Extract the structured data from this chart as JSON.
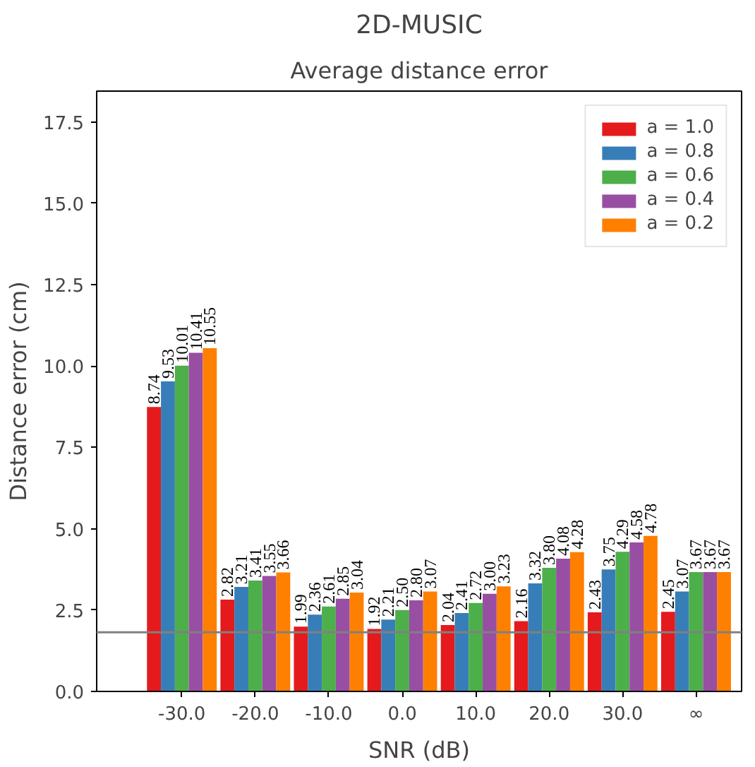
{
  "chart_data": {
    "type": "bar",
    "title": "2D-MUSIC",
    "subtitle": "Average distance error",
    "xlabel": "SNR (dB)",
    "ylabel": "Distance error (cm)",
    "categories": [
      "-30.0",
      "-20.0",
      "-10.0",
      "0.0",
      "10.0",
      "20.0",
      "30.0",
      "∞"
    ],
    "series": [
      {
        "name": "a = 1.0",
        "color": "#e41a1c",
        "values": [
          8.74,
          2.82,
          1.99,
          1.92,
          2.04,
          2.16,
          2.43,
          2.45
        ],
        "value_labels": [
          "8.74",
          "2.82",
          "1.99",
          "1.92",
          "2.04",
          "2.16",
          "2.43",
          "2.45"
        ]
      },
      {
        "name": "a = 0.8",
        "color": "#377eb8",
        "values": [
          9.53,
          3.21,
          2.36,
          2.21,
          2.41,
          3.32,
          3.75,
          3.07
        ],
        "value_labels": [
          "9.53",
          "3.21",
          "2.36",
          "2.21",
          "2.41",
          "3.32",
          "3.75",
          "3.07"
        ]
      },
      {
        "name": "a = 0.6",
        "color": "#4daf4a",
        "values": [
          10.01,
          3.41,
          2.61,
          2.5,
          2.72,
          3.8,
          4.29,
          3.67
        ],
        "value_labels": [
          "10.01",
          "3.41",
          "2.61",
          "2.50",
          "2.72",
          "3.80",
          "4.29",
          "3.67"
        ]
      },
      {
        "name": "a = 0.4",
        "color": "#984ea3",
        "values": [
          10.41,
          3.55,
          2.85,
          2.8,
          3.0,
          4.08,
          4.58,
          3.67
        ],
        "value_labels": [
          "10.41",
          "3.55",
          "2.85",
          "2.80",
          "3.00",
          "4.08",
          "4.58",
          "3.67"
        ]
      },
      {
        "name": "a = 0.2",
        "color": "#ff7f00",
        "values": [
          10.55,
          3.66,
          3.04,
          3.07,
          3.23,
          4.28,
          4.78,
          3.67
        ],
        "value_labels": [
          "10.55",
          "3.66",
          "3.04",
          "3.07",
          "3.23",
          "4.28",
          "4.78",
          "3.67"
        ]
      }
    ],
    "ylim": [
      0,
      18.45
    ],
    "yticks": [
      {
        "value": 0,
        "label": "0.0"
      },
      2.5,
      {
        "value": 5,
        "label": "5.0"
      },
      7.5,
      {
        "value": 10,
        "label": "10.0"
      },
      12.5,
      {
        "value": 15,
        "label": "15.0"
      },
      17.5
    ],
    "ref_lines": [
      {
        "axis": "y",
        "value": 1.82,
        "label": null,
        "color": "#808080"
      }
    ],
    "grid": false,
    "legend": "top right"
  }
}
